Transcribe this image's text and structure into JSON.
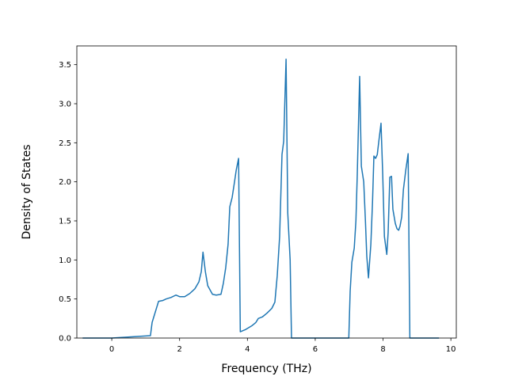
{
  "chart_data": {
    "type": "line",
    "xlabel": "Frequency (THz)",
    "ylabel": "Density of States",
    "x": [
      -0.86,
      0,
      1.14,
      1.19,
      1.38,
      1.5,
      1.6,
      1.75,
      1.89,
      2.0,
      2.15,
      2.3,
      2.45,
      2.57,
      2.64,
      2.69,
      2.76,
      2.83,
      2.97,
      3.08,
      3.22,
      3.29,
      3.36,
      3.43,
      3.48,
      3.55,
      3.62,
      3.67,
      3.74,
      3.79,
      3.95,
      4.14,
      4.25,
      4.32,
      4.44,
      4.58,
      4.72,
      4.81,
      4.88,
      4.95,
      5.02,
      5.07,
      5.14,
      5.19,
      5.26,
      5.3,
      6.99,
      7.03,
      7.08,
      7.15,
      7.2,
      7.24,
      7.31,
      7.36,
      7.43,
      7.48,
      7.52,
      7.57,
      7.64,
      7.69,
      7.73,
      7.78,
      7.83,
      7.87,
      7.94,
      7.99,
      8.04,
      8.11,
      8.15,
      8.2,
      8.25,
      8.29,
      8.36,
      8.41,
      8.46,
      8.5,
      8.55,
      8.6,
      8.67,
      8.74,
      8.79,
      9.65
    ],
    "series": [
      {
        "name": "DOS",
        "color": "#1f77b4",
        "values": [
          0,
          0,
          0.03,
          0.2,
          0.47,
          0.48,
          0.5,
          0.52,
          0.55,
          0.53,
          0.53,
          0.57,
          0.63,
          0.72,
          0.85,
          1.1,
          0.85,
          0.67,
          0.56,
          0.55,
          0.56,
          0.7,
          0.9,
          1.2,
          1.68,
          1.8,
          2.0,
          2.15,
          2.3,
          0.08,
          0.11,
          0.16,
          0.2,
          0.25,
          0.27,
          0.32,
          0.38,
          0.46,
          0.8,
          1.3,
          2.35,
          2.52,
          3.57,
          1.6,
          1.0,
          0,
          0,
          0.6,
          0.97,
          1.15,
          1.5,
          2.1,
          3.35,
          2.2,
          2.0,
          1.5,
          1.05,
          0.77,
          1.2,
          1.75,
          2.33,
          2.3,
          2.35,
          2.5,
          2.75,
          2.1,
          1.3,
          1.07,
          1.35,
          2.06,
          2.07,
          1.65,
          1.47,
          1.4,
          1.38,
          1.43,
          1.55,
          1.9,
          2.15,
          2.36,
          0,
          0
        ]
      }
    ],
    "xlim": [
      -1.03,
      10.16
    ],
    "ylim": [
      0,
      3.74
    ],
    "xticks": [
      0,
      2,
      4,
      6,
      8,
      10
    ],
    "yticks": [
      {
        "value": 0,
        "label": "0.0"
      },
      0.5,
      {
        "value": 1,
        "label": "1.0"
      },
      1.5,
      {
        "value": 2,
        "label": "2.0"
      },
      2.5,
      {
        "value": 3,
        "label": "3.0"
      },
      3.5
    ]
  }
}
